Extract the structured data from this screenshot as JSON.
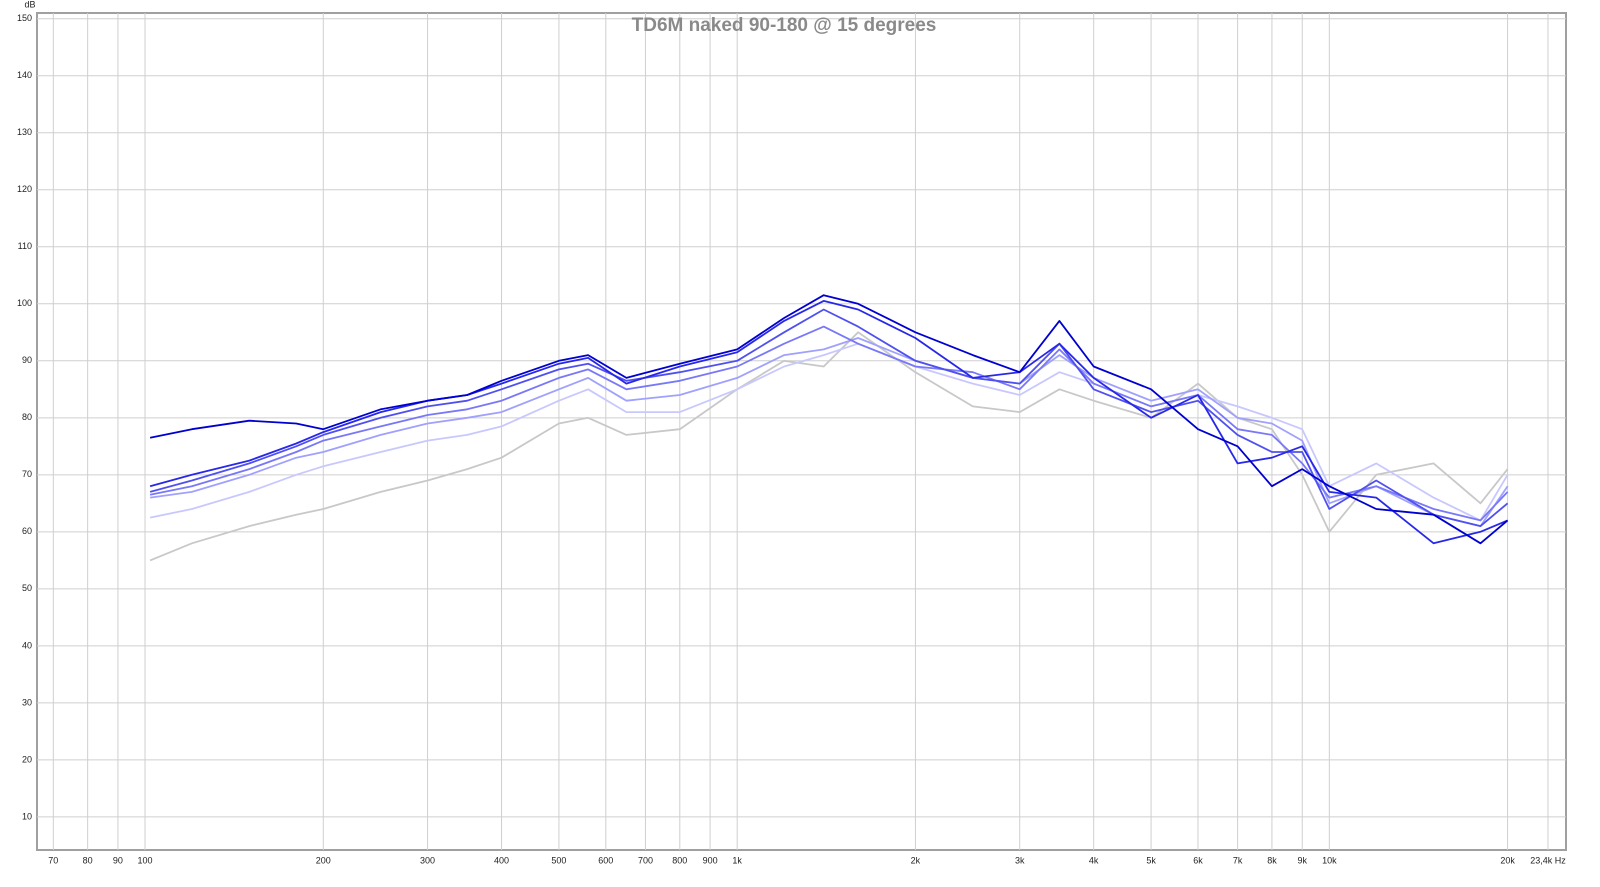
{
  "chart_data": {
    "type": "line",
    "title": "TD6M naked 90-180 @ 15 degrees",
    "y_label": "dB",
    "log_x": true,
    "grid": true,
    "x": [
      102,
      120,
      150,
      180,
      200,
      250,
      300,
      350,
      400,
      500,
      560,
      650,
      800,
      1000,
      1200,
      1400,
      1600,
      2000,
      2500,
      3000,
      3500,
      4000,
      5000,
      6000,
      7000,
      8000,
      9000,
      10000,
      12000,
      15000,
      18000,
      20000
    ],
    "series": [
      {
        "color": "#c8c8c8",
        "values": [
          55,
          58,
          61,
          63,
          64,
          67,
          69,
          71,
          73,
          79,
          80,
          77,
          78,
          85,
          90,
          89,
          95,
          88,
          82,
          81,
          85,
          83,
          80,
          86,
          80,
          78,
          70,
          60,
          70,
          72,
          65,
          71
        ]
      },
      {
        "color": "#c8c8ff",
        "values": [
          62.5,
          64,
          67,
          70,
          71.5,
          74,
          76,
          77,
          78.5,
          83,
          85,
          81,
          81,
          85,
          89,
          91,
          93,
          89,
          86,
          84,
          88,
          86,
          82,
          84,
          82,
          80,
          78,
          68,
          72,
          66,
          62,
          70
        ]
      },
      {
        "color": "#a0a0ff",
        "values": [
          66,
          67,
          70,
          73,
          74,
          77,
          79,
          80,
          81,
          85,
          87,
          83,
          84,
          87,
          91,
          92,
          94,
          90,
          87,
          86,
          91,
          87,
          83,
          85,
          80,
          79,
          76,
          65,
          68,
          63,
          61,
          68
        ]
      },
      {
        "color": "#7878f8",
        "values": [
          66.5,
          68,
          71,
          74,
          76,
          78.5,
          80.5,
          81.5,
          83,
          87,
          88.5,
          85,
          86.5,
          89,
          93,
          96,
          93,
          89,
          88,
          85,
          92,
          86,
          82,
          84,
          78,
          77,
          72,
          66,
          68,
          64,
          62,
          67
        ]
      },
      {
        "color": "#5050f0",
        "values": [
          67,
          69,
          72,
          75,
          77,
          80,
          82,
          83,
          85,
          88.5,
          89.5,
          86.5,
          88,
          90,
          95,
          99,
          96,
          90,
          87,
          86,
          93,
          85,
          81,
          83,
          77,
          74,
          74,
          64,
          69,
          63,
          61,
          65
        ]
      },
      {
        "color": "#2828e8",
        "values": [
          68,
          70,
          72.5,
          75.5,
          77.5,
          81,
          83,
          84,
          86,
          89.5,
          90.5,
          86,
          89,
          91.5,
          97,
          100.5,
          99,
          94,
          87,
          88,
          93,
          87,
          80,
          84,
          72,
          73,
          75,
          67,
          66,
          58,
          60,
          62
        ]
      },
      {
        "color": "#0000d0",
        "values": [
          76.5,
          78,
          79.5,
          79,
          78,
          81.5,
          83,
          84,
          86.5,
          90,
          91,
          87,
          89.5,
          92,
          97.5,
          101.5,
          100,
          95,
          91,
          88,
          97,
          89,
          85,
          78,
          75,
          68,
          71,
          68,
          64,
          63,
          58,
          62
        ]
      }
    ],
    "xlim": [
      65.7,
      25100
    ],
    "ylim": [
      4.2,
      151
    ],
    "yticks": [
      10,
      20,
      30,
      40,
      50,
      60,
      70,
      80,
      90,
      100,
      110,
      120,
      130,
      140,
      150
    ],
    "xticks": [
      70,
      80,
      90,
      100,
      200,
      300,
      400,
      500,
      600,
      700,
      800,
      900,
      {
        "value": 1000,
        "label": "1k"
      },
      {
        "value": 2000,
        "label": "2k"
      },
      {
        "value": 3000,
        "label": "3k"
      },
      {
        "value": 4000,
        "label": "4k"
      },
      {
        "value": 5000,
        "label": "5k"
      },
      {
        "value": 6000,
        "label": "6k"
      },
      {
        "value": 7000,
        "label": "7k"
      },
      {
        "value": 8000,
        "label": "8k"
      },
      {
        "value": 9000,
        "label": "9k"
      },
      {
        "value": 10000,
        "label": "10k"
      },
      {
        "value": 20000,
        "label": "20k"
      },
      {
        "value": 23400,
        "label": "23,4k Hz"
      }
    ]
  }
}
